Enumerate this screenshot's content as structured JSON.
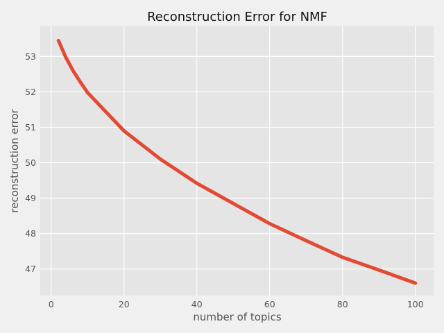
{
  "chart_data": {
    "type": "line",
    "title": "Reconstruction Error for NMF",
    "xlabel": "number of topics",
    "ylabel": "reconstruction error",
    "xlim": [
      -3,
      105
    ],
    "ylim": [
      46.25,
      53.85
    ],
    "xticks": [
      0,
      20,
      40,
      60,
      80,
      100
    ],
    "yticks": [
      47,
      48,
      49,
      50,
      51,
      52,
      53
    ],
    "grid": true,
    "series": [
      {
        "color": "#e24a33",
        "x": [
          2,
          4,
          6,
          8,
          10,
          20,
          30,
          40,
          50,
          60,
          70,
          80,
          90,
          100
        ],
        "y": [
          53.45,
          52.98,
          52.6,
          52.28,
          51.98,
          50.9,
          50.1,
          49.42,
          48.85,
          48.28,
          47.8,
          47.33,
          46.97,
          46.6
        ]
      }
    ]
  }
}
